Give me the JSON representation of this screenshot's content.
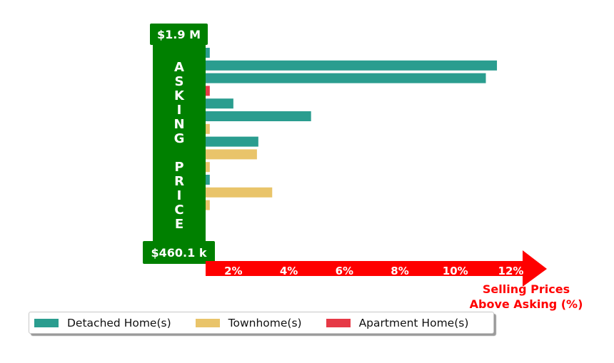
{
  "chart_data": {
    "type": "bar",
    "orientation": "horizontal",
    "y_axis_label": [
      "A",
      "S",
      "K",
      "I",
      "N",
      "G",
      "",
      "P",
      "R",
      "I",
      "C",
      "E"
    ],
    "y_top_label": "$1.9 M",
    "y_bottom_label": "$460.1 k",
    "x_label_line1": "Selling Prices",
    "x_label_line2": "Above Asking (%)",
    "x_ticks": [
      "2%",
      "4%",
      "6%",
      "8%",
      "10%",
      "12%"
    ],
    "x_tick_values": [
      2,
      4,
      6,
      8,
      10,
      12
    ],
    "xlim": [
      1,
      13.3
    ],
    "bars": [
      {
        "series": 0,
        "value": 1.15
      },
      {
        "series": 0,
        "value": 11.5
      },
      {
        "series": 0,
        "value": 11.1
      },
      {
        "series": 2,
        "value": 1.15
      },
      {
        "series": 0,
        "value": 2.0
      },
      {
        "series": 0,
        "value": 4.8
      },
      {
        "series": 1,
        "value": 1.15
      },
      {
        "series": 0,
        "value": 2.9
      },
      {
        "series": 1,
        "value": 2.85
      },
      {
        "series": 1,
        "value": 1.15
      },
      {
        "series": 0,
        "value": 1.15
      },
      {
        "series": 1,
        "value": 3.4
      },
      {
        "series": 1,
        "value": 1.15
      }
    ],
    "series": [
      {
        "name": "Detached Home(s)",
        "color": "#2a9d8f"
      },
      {
        "name": "Townhome(s)",
        "color": "#e9c46a"
      },
      {
        "name": "Apartment Home(s)",
        "color": "#e63946"
      }
    ],
    "axis_band_color": "#008000",
    "arrow_color": "#ff0000",
    "legend_position": "bottom-left"
  }
}
